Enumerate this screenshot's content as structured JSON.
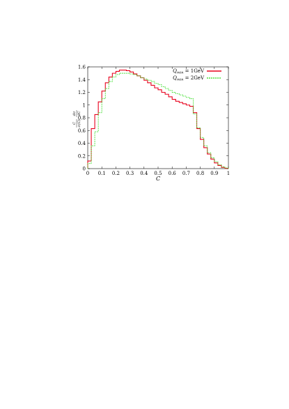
{
  "chart_data": {
    "type": "line",
    "step": true,
    "title": "",
    "xlabel": "C",
    "ylabel": "C/(σ(C)) dσ/dC",
    "ylabel_parts": {
      "left_num": "C",
      "left_den": "σ(C)",
      "right_num": "dσ",
      "right_den": "dC"
    },
    "xlim": [
      0,
      1
    ],
    "ylim": [
      0,
      1.6
    ],
    "xticks": [
      0,
      0.1,
      0.2,
      0.3,
      0.4,
      0.5,
      0.6,
      0.7,
      0.8,
      0.9,
      1
    ],
    "xtick_labels": [
      "0",
      "0.1",
      "0.2",
      "0.3",
      "0.4",
      "0.5",
      "0.6",
      "0.7",
      "0.8",
      "0.9",
      "1"
    ],
    "yticks": [
      0,
      0.2,
      0.4,
      0.6,
      0.8,
      1,
      1.2,
      1.4,
      1.6
    ],
    "ytick_labels": [
      "0",
      "0.2",
      "0.4",
      "0.6",
      "0.8",
      "1",
      "1.2",
      "1.4",
      "1.6"
    ],
    "grid": false,
    "legend_position": "top-right",
    "bin_edges": [
      0,
      0.025,
      0.05,
      0.075,
      0.1,
      0.125,
      0.15,
      0.175,
      0.2,
      0.225,
      0.25,
      0.275,
      0.3,
      0.325,
      0.35,
      0.375,
      0.4,
      0.425,
      0.45,
      0.475,
      0.5,
      0.525,
      0.55,
      0.575,
      0.6,
      0.625,
      0.65,
      0.675,
      0.7,
      0.725,
      0.75,
      0.775,
      0.8,
      0.825,
      0.85,
      0.875,
      0.9,
      0.925,
      0.95,
      0.975,
      1.0
    ],
    "series": [
      {
        "name_main": "Q",
        "name_sub": "min",
        "name_rest": " = 1GeV",
        "color": "#e8001c",
        "values": [
          0.12,
          0.63,
          0.85,
          1.05,
          1.22,
          1.35,
          1.44,
          1.5,
          1.53,
          1.55,
          1.55,
          1.54,
          1.52,
          1.49,
          1.46,
          1.43,
          1.39,
          1.35,
          1.31,
          1.27,
          1.24,
          1.2,
          1.17,
          1.13,
          1.09,
          1.06,
          1.04,
          1.02,
          1.0,
          0.98,
          0.88,
          0.63,
          0.46,
          0.33,
          0.23,
          0.15,
          0.09,
          0.05,
          0.02,
          0.005
        ]
      },
      {
        "name_main": "Q",
        "name_sub": "min",
        "name_rest": " = 2GeV",
        "color": "#4de03c",
        "values": [
          0.08,
          0.36,
          0.58,
          0.88,
          1.1,
          1.26,
          1.37,
          1.44,
          1.48,
          1.5,
          1.5,
          1.5,
          1.49,
          1.48,
          1.46,
          1.43,
          1.41,
          1.39,
          1.37,
          1.34,
          1.32,
          1.29,
          1.26,
          1.23,
          1.2,
          1.18,
          1.16,
          1.14,
          1.12,
          1.1,
          0.86,
          0.64,
          0.49,
          0.36,
          0.25,
          0.17,
          0.11,
          0.06,
          0.03,
          0.01
        ]
      }
    ]
  }
}
